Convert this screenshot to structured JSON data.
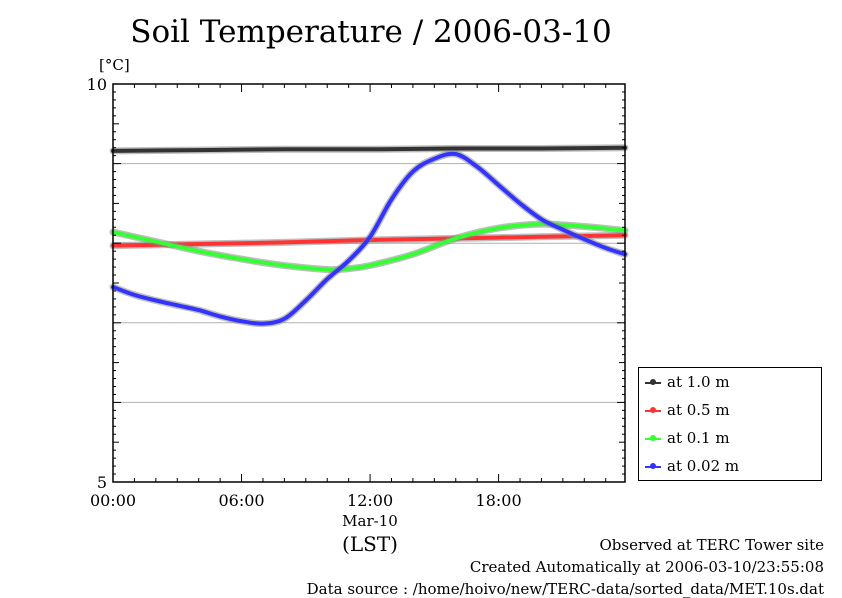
{
  "chart_data": {
    "type": "line",
    "title": "Soil Temperature / 2006-03-10",
    "ylabel": "[°C]",
    "xlabel": "(LST)",
    "date_label": "Mar-10",
    "ylim": [
      5,
      10
    ],
    "xlim": [
      0,
      23.9
    ],
    "yticks": [
      "10",
      "5"
    ],
    "xticks": [
      {
        "value": 0,
        "label": "00:00"
      },
      {
        "value": 6,
        "label": "06:00"
      },
      {
        "value": 12,
        "label": "12:00"
      },
      {
        "value": 18,
        "label": "18:00"
      }
    ],
    "grid": true,
    "legend_position": "bottom-right-outside",
    "series": [
      {
        "name": "at 1.0 m",
        "color": "#333333",
        "x": [
          0,
          4,
          8,
          12,
          16,
          20,
          23.9
        ],
        "y": [
          9.16,
          9.17,
          9.18,
          9.18,
          9.19,
          9.19,
          9.2
        ]
      },
      {
        "name": "at 0.5 m",
        "color": "#ff3333",
        "x": [
          0,
          4,
          8,
          12,
          16,
          20,
          23.9
        ],
        "y": [
          7.97,
          7.99,
          8.01,
          8.04,
          8.06,
          8.08,
          8.1
        ]
      },
      {
        "name": "at 0.1 m",
        "color": "#33ff33",
        "x": [
          0,
          2,
          4,
          6,
          8,
          10,
          11,
          12,
          14,
          16,
          18,
          20,
          22,
          23.9
        ],
        "y": [
          8.14,
          8.02,
          7.9,
          7.8,
          7.72,
          7.67,
          7.68,
          7.72,
          7.86,
          8.06,
          8.19,
          8.24,
          8.21,
          8.16
        ]
      },
      {
        "name": "at 0.02 m",
        "color": "#3333ff",
        "x": [
          0,
          1,
          2,
          3,
          4,
          5,
          6,
          7,
          8,
          9,
          10,
          11,
          12,
          13,
          14,
          15,
          16,
          17,
          18,
          19,
          20,
          21,
          22,
          23,
          23.9
        ],
        "y": [
          7.45,
          7.35,
          7.28,
          7.22,
          7.16,
          7.08,
          7.02,
          6.99,
          7.05,
          7.28,
          7.55,
          7.78,
          8.08,
          8.55,
          8.9,
          9.06,
          9.12,
          8.96,
          8.73,
          8.5,
          8.3,
          8.17,
          8.05,
          7.94,
          7.86
        ]
      }
    ]
  },
  "legend": {
    "items": [
      {
        "label": "at 1.0 m",
        "color": "#333333"
      },
      {
        "label": "at 0.5 m",
        "color": "#ff3333"
      },
      {
        "label": "at 0.1 m",
        "color": "#33ff33"
      },
      {
        "label": "at 0.02 m",
        "color": "#3333ff"
      }
    ]
  },
  "footer": {
    "observed": "Observed at TERC Tower site",
    "created": "Created Automatically at 2006-03-10/23:55:08",
    "source": "Data source : /home/hoivo/new/TERC-data/sorted_data/MET.10s.dat"
  }
}
